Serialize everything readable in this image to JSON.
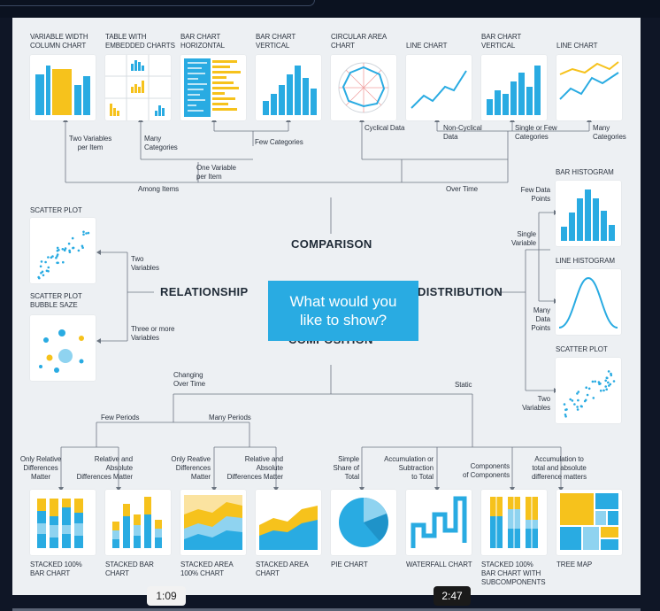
{
  "center": {
    "line1": "What would you",
    "line2": "like to show?"
  },
  "headings": {
    "comparison": "COMPARISON",
    "relationship": "RELATIONSHIP",
    "distribution": "DISTRIBUTION",
    "composition": "COMPOSITION"
  },
  "top_charts": [
    {
      "line1": "VARIABLE WIDTH",
      "line2": "COLUMN CHART"
    },
    {
      "line1": "TABLE WITH",
      "line2": "EMBEDDED CHARTS"
    },
    {
      "line1": "BAR CHART",
      "line2": "HORIZONTAL"
    },
    {
      "line1": "BAR CHART",
      "line2": "VERTICAL"
    },
    {
      "line1": "CIRCULAR AREA",
      "line2": "CHART"
    },
    {
      "line1": "LINE CHART",
      "line2": ""
    },
    {
      "line1": "BAR CHART",
      "line2": "VERTICAL"
    },
    {
      "line1": "LINE CHART",
      "line2": ""
    }
  ],
  "comparison_labels": {
    "two_vars": [
      "Two Variables",
      "per Item"
    ],
    "many_cat": [
      "Many",
      "Categories"
    ],
    "few_cat": "Few Categories",
    "one_var": [
      "One Variable",
      "per Item"
    ],
    "among_items": "Among Items",
    "over_time": "Over Time",
    "cyclical": "Cyclical Data",
    "non_cyclical": [
      "Non-Cyclical",
      "Data"
    ],
    "single_few": [
      "Single or Few",
      "Categories"
    ],
    "many_cat2": [
      "Many",
      "Categories"
    ]
  },
  "relationship": {
    "scatter_title": "SCATTER PLOT",
    "bubble_title": [
      "SCATTER PLOT",
      "BUBBLE SAZE"
    ],
    "two_vars": [
      "Two",
      "Variables"
    ],
    "three_vars": [
      "Three or more",
      "Variables"
    ]
  },
  "distribution": {
    "bar_hist": "BAR HISTOGRAM",
    "few_points": [
      "Few Data",
      "Points"
    ],
    "single_var": [
      "Single",
      "Variable"
    ],
    "line_hist": "LINE HISTOGRAM",
    "many_points": [
      "Many",
      "Data",
      "Points"
    ],
    "scatter": "SCATTER PLOT",
    "two_vars": [
      "Two",
      "Variables"
    ]
  },
  "composition": {
    "changing": [
      "Changing",
      "Over Time"
    ],
    "static": "Static",
    "few_periods": "Few Periods",
    "many_periods": "Many Periods",
    "only_rel": [
      "Only Relative",
      "Differences",
      "Matter"
    ],
    "rel_abs": [
      "Relative and",
      "Absolute",
      "Differences Matter"
    ],
    "only_rel2": [
      "Only Reative",
      "Differences",
      "Matter"
    ],
    "rel_abs2": [
      "Relative and",
      "Absolute",
      "Differences Matter"
    ],
    "simple_share": [
      "Simple",
      "Share of",
      "Total"
    ],
    "accum_sub": [
      "Accumulation or",
      "Subtraction",
      "to Total"
    ],
    "components": [
      "Components",
      "of Components"
    ],
    "accum_total": [
      "Accumulation to",
      "total and absolute",
      "difference matters"
    ]
  },
  "bottom_charts": [
    {
      "line1": "STACKED 100%",
      "line2": "BAR CHART",
      "line3": ""
    },
    {
      "line1": "STACKED BAR",
      "line2": "CHART",
      "line3": ""
    },
    {
      "line1": "STACKED AREA",
      "line2": "100% CHART",
      "line3": ""
    },
    {
      "line1": "STACKED AREA",
      "line2": "CHART",
      "line3": ""
    },
    {
      "line1": "PIE CHART",
      "line2": "",
      "line3": ""
    },
    {
      "line1": "WATERFALL CHART",
      "line2": "",
      "line3": ""
    },
    {
      "line1": "STACKED 100%",
      "line2": "BAR CHART WITH",
      "line3": "SUBCOMPONENTS"
    },
    {
      "line1": "TREE MAP",
      "line2": "",
      "line3": ""
    }
  ],
  "player": {
    "time_left": "1:09",
    "time_right": "2:47"
  },
  "colors": {
    "blue": "#29abe2",
    "yellow": "#f6c21c",
    "light_blue": "#8fd3f0",
    "panel": "#edf0f3"
  }
}
